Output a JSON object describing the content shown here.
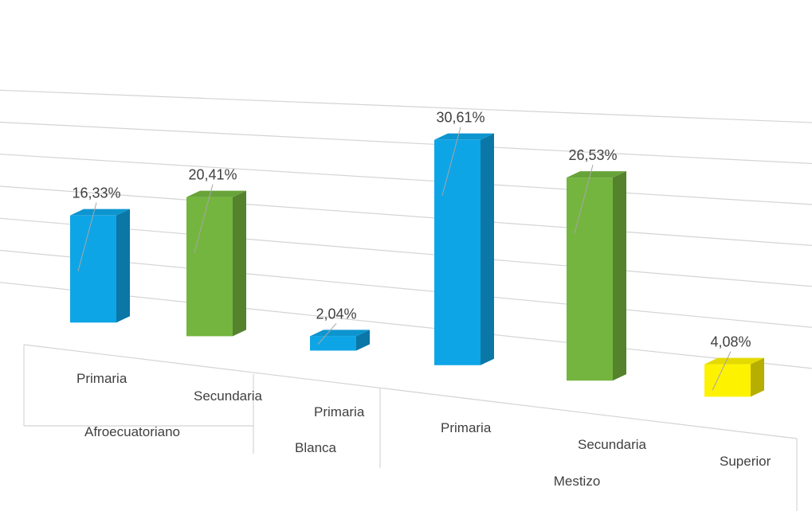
{
  "colors": {
    "Primaria": "#0ea5e6",
    "Secundaria": "#74b53f",
    "Superior": "#fdf200",
    "grid": "#d4d4d4",
    "text": "#404040",
    "leader": "#a6a6a6"
  },
  "chart_data": {
    "type": "bar",
    "title": "",
    "xlabel": "",
    "ylabel": "",
    "ylim": [
      0,
      35
    ],
    "grid": true,
    "legend": "none",
    "three_d": true,
    "groups": [
      {
        "name": "Afroecuatoriano",
        "bars": [
          {
            "category": "Primaria",
            "value": 16.33,
            "label": "16,33%"
          },
          {
            "category": "Secundaria",
            "value": 20.41,
            "label": "20,41%"
          }
        ]
      },
      {
        "name": "Blanca",
        "bars": [
          {
            "category": "Primaria",
            "value": 2.04,
            "label": "2,04%"
          }
        ]
      },
      {
        "name": "Mestizo",
        "bars": [
          {
            "category": "Primaria",
            "value": 30.61,
            "label": "30,61%"
          },
          {
            "category": "Secundaria",
            "value": 26.53,
            "label": "26,53%"
          },
          {
            "category": "Superior",
            "value": 4.08,
            "label": "4,08%"
          }
        ]
      }
    ]
  }
}
